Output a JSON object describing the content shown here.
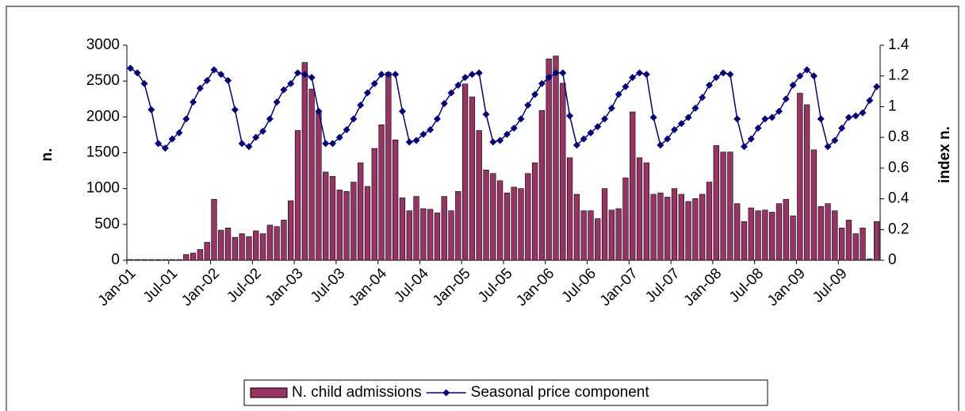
{
  "chart_data": {
    "type": "bar",
    "categories": [
      "Jan-01",
      null,
      null,
      null,
      null,
      null,
      "Jul-01",
      null,
      null,
      null,
      null,
      null,
      "Jan-02",
      null,
      null,
      null,
      null,
      null,
      "Jul-02",
      null,
      null,
      null,
      null,
      null,
      "Jan-03",
      null,
      null,
      null,
      null,
      null,
      "Jul-03",
      null,
      null,
      null,
      null,
      null,
      "Jan-04",
      null,
      null,
      null,
      null,
      null,
      "Jul-04",
      null,
      null,
      null,
      null,
      null,
      "Jan-05",
      null,
      null,
      null,
      null,
      null,
      "Jul-05",
      null,
      null,
      null,
      null,
      null,
      "Jan-06",
      null,
      null,
      null,
      null,
      null,
      "Jul-06",
      null,
      null,
      null,
      null,
      null,
      "Jan-07",
      null,
      null,
      null,
      null,
      null,
      "Jul-07",
      null,
      null,
      null,
      null,
      null,
      "Jan-08",
      null,
      null,
      null,
      null,
      null,
      "Jul-08",
      null,
      null,
      null,
      null,
      null,
      "Jan-09",
      null,
      null,
      null,
      null,
      null,
      "Jul-09",
      null,
      null,
      null,
      null,
      null
    ],
    "series": [
      {
        "name": "N. child admissions",
        "type": "bar",
        "color": "#993366",
        "values": [
          10,
          10,
          10,
          10,
          10,
          10,
          10,
          10,
          80,
          100,
          150,
          250,
          850,
          420,
          450,
          320,
          370,
          330,
          410,
          370,
          490,
          470,
          560,
          830,
          1810,
          2760,
          2390,
          2060,
          1230,
          1170,
          980,
          960,
          1090,
          1360,
          1030,
          1560,
          1890,
          2620,
          1680,
          870,
          690,
          890,
          720,
          710,
          660,
          890,
          690,
          960,
          2460,
          2280,
          1810,
          1260,
          1210,
          1110,
          940,
          1020,
          1000,
          1210,
          1360,
          2090,
          2810,
          2850,
          2470,
          1430,
          920,
          690,
          690,
          580,
          1000,
          700,
          720,
          1150,
          2070,
          1430,
          1360,
          920,
          940,
          880,
          1000,
          920,
          820,
          860,
          920,
          1090,
          1600,
          1510,
          1510,
          790,
          540,
          730,
          690,
          700,
          670,
          790,
          850,
          620,
          2330,
          2170,
          1540,
          750,
          790,
          690,
          450,
          560,
          370,
          450,
          20,
          540
        ]
      },
      {
        "name": "Seasonal price component",
        "type": "line",
        "axis": "y2",
        "color": "#000080",
        "values": [
          1.25,
          1.22,
          1.15,
          0.98,
          0.76,
          0.73,
          0.79,
          0.83,
          0.92,
          1.03,
          1.12,
          1.17,
          1.24,
          1.21,
          1.17,
          0.98,
          0.76,
          0.74,
          0.8,
          0.84,
          0.92,
          1.03,
          1.11,
          1.15,
          1.22,
          1.21,
          1.19,
          0.97,
          0.76,
          0.76,
          0.8,
          0.85,
          0.92,
          1.01,
          1.09,
          1.15,
          1.21,
          1.21,
          1.21,
          0.97,
          0.77,
          0.78,
          0.82,
          0.85,
          0.92,
          1.02,
          1.09,
          1.14,
          1.19,
          1.21,
          1.22,
          0.95,
          0.77,
          0.78,
          0.82,
          0.86,
          0.92,
          1.01,
          1.08,
          1.15,
          1.19,
          1.22,
          1.22,
          0.94,
          0.75,
          0.79,
          0.83,
          0.87,
          0.92,
          0.99,
          1.08,
          1.13,
          1.19,
          1.22,
          1.21,
          0.93,
          0.75,
          0.79,
          0.85,
          0.89,
          0.93,
          0.99,
          1.06,
          1.14,
          1.19,
          1.22,
          1.21,
          0.92,
          0.74,
          0.79,
          0.86,
          0.92,
          0.93,
          0.97,
          1.05,
          1.14,
          1.2,
          1.24,
          1.2,
          0.92,
          0.74,
          0.78,
          0.86,
          0.93,
          0.94,
          0.96,
          1.04,
          1.13
        ]
      }
    ],
    "y_label": "n.",
    "y2_label": "index n.",
    "ylim": [
      0,
      3000
    ],
    "yticks": [
      0,
      500,
      1000,
      1500,
      2000,
      2500,
      3000
    ],
    "y2lim": [
      0,
      1.4
    ],
    "y2ticks": [
      0,
      0.2,
      0.4,
      0.6,
      0.8,
      1,
      1.2,
      1.4
    ],
    "legend": "bottom"
  }
}
